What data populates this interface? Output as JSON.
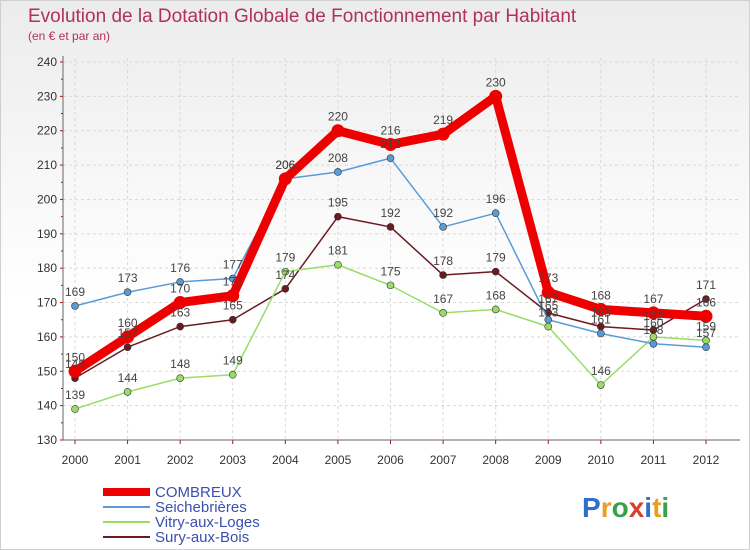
{
  "chart_data": {
    "type": "line",
    "title": "Evolution de la Dotation Globale de Fonctionnement par Habitant",
    "subtitle": "(en € et par an)",
    "xlabel": "",
    "ylabel": "",
    "categories": [
      "2000",
      "2001",
      "2002",
      "2003",
      "2004",
      "2005",
      "2006",
      "2007",
      "2008",
      "2009",
      "2010",
      "2011",
      "2012"
    ],
    "ylim": [
      130,
      240
    ],
    "yticks": [
      "130",
      "140",
      "150",
      "160",
      "170",
      "180",
      "190",
      "200",
      "210",
      "220",
      "230",
      "240"
    ],
    "grid": true,
    "legend_position": "bottom-left",
    "series": [
      {
        "name": "COMBREUX",
        "color": "#ee0000",
        "values": [
          150,
          160,
          170,
          172,
          206,
          220,
          216,
          219,
          230,
          173,
          168,
          167,
          166
        ]
      },
      {
        "name": "Seichebrières",
        "color": "#5b9bd5",
        "values": [
          169,
          173,
          176,
          177,
          206,
          208,
          212,
          192,
          196,
          165,
          161,
          158,
          157
        ]
      },
      {
        "name": "Vitry-aux-Loges",
        "color": "#99dd66",
        "values": [
          139,
          144,
          148,
          149,
          179,
          181,
          175,
          167,
          168,
          163,
          146,
          160,
          159
        ]
      },
      {
        "name": "Sury-aux-Bois",
        "color": "#6b1a22",
        "values": [
          148,
          157,
          163,
          165,
          174,
          195,
          192,
          178,
          179,
          167,
          163,
          162,
          171
        ]
      }
    ]
  },
  "branding": {
    "logo_text": "Proxiti"
  }
}
